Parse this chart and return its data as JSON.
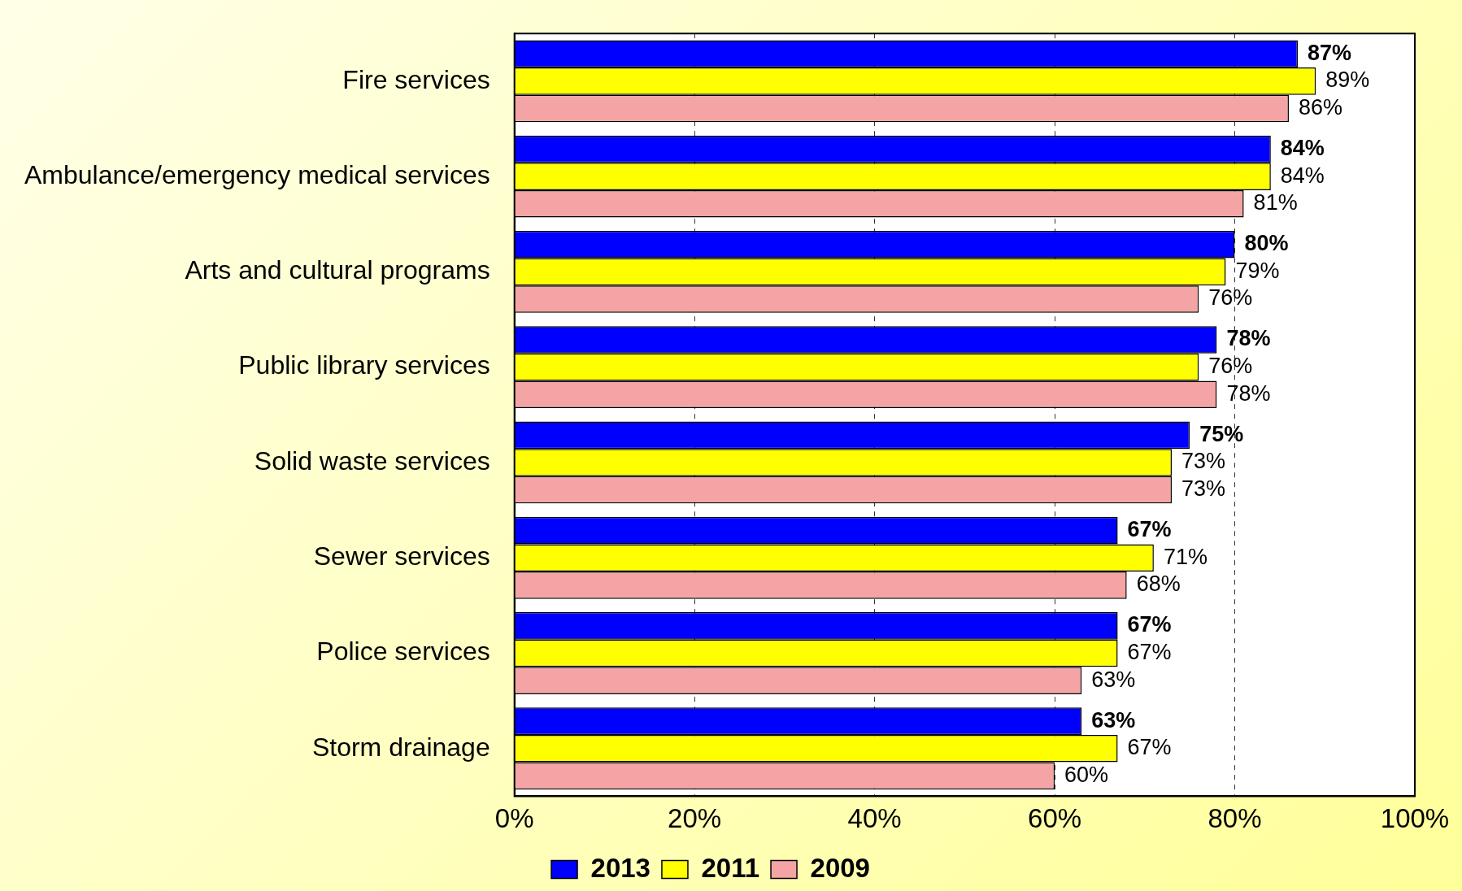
{
  "chart_data": {
    "type": "bar",
    "orientation": "horizontal",
    "categories": [
      "Fire services",
      "Ambulance/emergency medical services",
      "Arts and cultural programs",
      "Public library services",
      "Solid waste services",
      "Sewer services",
      "Police services",
      "Storm drainage"
    ],
    "series": [
      {
        "name": "2013",
        "color": "#0000ff",
        "values": [
          87,
          84,
          80,
          78,
          75,
          67,
          67,
          63
        ],
        "value_labels": [
          "87%",
          "84%",
          "80%",
          "78%",
          "75%",
          "67%",
          "67%",
          "63%"
        ]
      },
      {
        "name": "2011",
        "color": "#ffff00",
        "values": [
          89,
          84,
          79,
          76,
          73,
          71,
          67,
          67
        ],
        "value_labels": [
          "89%",
          "84%",
          "79%",
          "76%",
          "73%",
          "71%",
          "67%",
          "67%"
        ]
      },
      {
        "name": "2009",
        "color": "#f4a4a4",
        "values": [
          86,
          81,
          76,
          78,
          73,
          68,
          63,
          60
        ],
        "value_labels": [
          "86%",
          "81%",
          "76%",
          "78%",
          "73%",
          "68%",
          "63%",
          "60%"
        ]
      }
    ],
    "xlim": [
      0,
      100
    ],
    "xticks": [
      {
        "value": 0,
        "label": "0%"
      },
      {
        "value": 20,
        "label": "20%"
      },
      {
        "value": 40,
        "label": "40%"
      },
      {
        "value": 60,
        "label": "60%"
      },
      {
        "value": 80,
        "label": "80%"
      },
      {
        "value": 100,
        "label": "100%"
      }
    ],
    "grid": "x",
    "legend": "bottom"
  }
}
